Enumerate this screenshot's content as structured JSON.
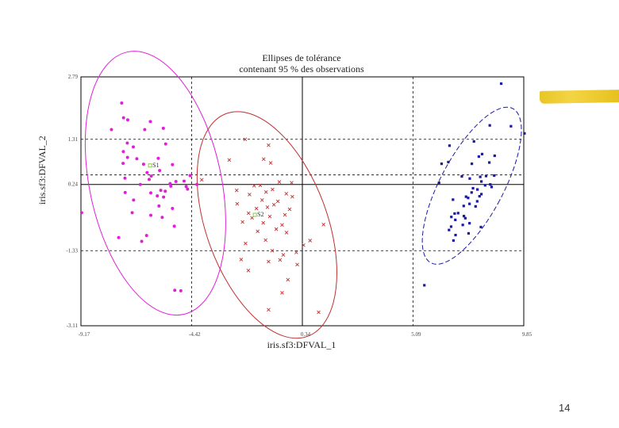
{
  "page": {
    "number": "14"
  },
  "chart_data": {
    "type": "scatter",
    "title": [
      "Ellipses de tolérance",
      "contenant 95 % des observations"
    ],
    "xlabel": "iris.sf3:DFVAL_1",
    "ylabel": "iris.sf3:DFVAL_2",
    "xlim": [
      -9.17,
      9.85
    ],
    "ylim": [
      -3.11,
      2.79
    ],
    "x_ticks": [
      "-9.17",
      "-4.42",
      "0.34",
      "5.09",
      "9.85"
    ],
    "y_ticks": [
      "2.79",
      "1.31",
      "0.24",
      "-1.33",
      "-3.11"
    ],
    "x_tick_values": [
      -9.17,
      -4.42,
      0.34,
      5.09,
      9.85
    ],
    "y_tick_values": [
      2.79,
      1.31,
      0.24,
      -1.33,
      -3.11
    ],
    "colors": {
      "s1": "#e020d8",
      "s2": "#c03030",
      "s3": "#1a1aa0",
      "centroid": "#88cc44",
      "grid": "#000000"
    },
    "centroid_labels": [
      "S1",
      "S2"
    ],
    "series": [
      {
        "id": "s1",
        "marker": "dot",
        "points": [
          [
            -7.42,
            2.17
          ],
          [
            -7.34,
            1.82
          ],
          [
            -7.16,
            1.77
          ],
          [
            -6.19,
            1.73
          ],
          [
            -7.86,
            1.54
          ],
          [
            -5.63,
            1.57
          ],
          [
            -6.43,
            1.54
          ],
          [
            -7.18,
            1.22
          ],
          [
            -5.53,
            1.2
          ],
          [
            -6.92,
            1.13
          ],
          [
            -7.35,
            1.02
          ],
          [
            -7.17,
            0.88
          ],
          [
            -5.85,
            0.86
          ],
          [
            -6.77,
            0.85
          ],
          [
            -7.36,
            0.74
          ],
          [
            -6.48,
            0.72
          ],
          [
            -5.24,
            0.71
          ],
          [
            -6.33,
            0.52
          ],
          [
            -6.15,
            0.44
          ],
          [
            -5.79,
            0.57
          ],
          [
            -7.28,
            0.39
          ],
          [
            -4.48,
            0.45
          ],
          [
            -4.74,
            0.32
          ],
          [
            -6.24,
            0.36
          ],
          [
            -5.09,
            0.31
          ],
          [
            -5.34,
            0.26
          ],
          [
            -6.62,
            0.24
          ],
          [
            -5.31,
            0.2
          ],
          [
            -4.65,
            0.19
          ],
          [
            -4.19,
            0.24
          ],
          [
            -4.59,
            0.13
          ],
          [
            -5.74,
            0.1
          ],
          [
            -7.27,
            0.05
          ],
          [
            -5.55,
            0.08
          ],
          [
            -6.17,
            0.04
          ],
          [
            -5.89,
            -0.03
          ],
          [
            -5.62,
            -0.06
          ],
          [
            -6.91,
            -0.13
          ],
          [
            -5.82,
            -0.27
          ],
          [
            -5.24,
            -0.33
          ],
          [
            -6.97,
            -0.43
          ],
          [
            -9.14,
            -0.43
          ],
          [
            -6.17,
            -0.49
          ],
          [
            -5.68,
            -0.54
          ],
          [
            -5.16,
            -0.75
          ],
          [
            -6.35,
            -0.97
          ],
          [
            -7.55,
            -1.02
          ],
          [
            -6.56,
            -1.11
          ],
          [
            -5.14,
            -2.27
          ],
          [
            -4.88,
            -2.28
          ]
        ]
      },
      {
        "id": "s2",
        "marker": "x",
        "points": [
          [
            -2.12,
            1.31
          ],
          [
            -1.11,
            1.17
          ],
          [
            -2.8,
            0.82
          ],
          [
            -1.32,
            0.84
          ],
          [
            -1.02,
            0.75
          ],
          [
            -3.98,
            0.35
          ],
          [
            -0.65,
            0.3
          ],
          [
            -0.12,
            0.28
          ],
          [
            -1.47,
            0.22
          ],
          [
            -1.73,
            0.21
          ],
          [
            -0.94,
            0.12
          ],
          [
            -2.48,
            0.1
          ],
          [
            -1.22,
            0.06
          ],
          [
            -0.35,
            0.02
          ],
          [
            -1.93,
            0.0
          ],
          [
            -0.09,
            -0.05
          ],
          [
            -1.39,
            -0.13
          ],
          [
            -0.71,
            -0.16
          ],
          [
            -2.46,
            -0.22
          ],
          [
            -0.88,
            -0.24
          ],
          [
            -1.16,
            -0.3
          ],
          [
            -1.63,
            -0.33
          ],
          [
            -0.21,
            -0.35
          ],
          [
            -1.97,
            -0.44
          ],
          [
            -0.41,
            -0.48
          ],
          [
            -1.06,
            -0.52
          ],
          [
            -1.82,
            -0.55
          ],
          [
            -2.23,
            -0.65
          ],
          [
            -1.34,
            -0.67
          ],
          [
            -0.53,
            -0.72
          ],
          [
            1.25,
            -0.71
          ],
          [
            -0.78,
            -0.82
          ],
          [
            -1.58,
            -0.87
          ],
          [
            -0.34,
            -0.9
          ],
          [
            -1.24,
            -1.08
          ],
          [
            0.67,
            -1.09
          ],
          [
            -2.1,
            -1.16
          ],
          [
            0.39,
            -1.2
          ],
          [
            -0.96,
            -1.33
          ],
          [
            0.08,
            -1.37
          ],
          [
            -0.48,
            -1.43
          ],
          [
            -2.29,
            -1.54
          ],
          [
            -0.62,
            -1.55
          ],
          [
            -1.11,
            -1.59
          ],
          [
            0.12,
            -1.66
          ],
          [
            -1.98,
            -1.8
          ],
          [
            -0.28,
            -2.02
          ],
          [
            -0.53,
            -2.33
          ],
          [
            -1.11,
            -2.73
          ],
          [
            1.04,
            -2.79
          ]
        ]
      },
      {
        "id": "s3",
        "marker": "square",
        "points": [
          [
            8.88,
            2.63
          ],
          [
            8.39,
            1.64
          ],
          [
            9.3,
            1.62
          ],
          [
            9.88,
            1.45
          ],
          [
            6.66,
            1.16
          ],
          [
            7.71,
            1.26
          ],
          [
            8.06,
            0.96
          ],
          [
            8.6,
            0.92
          ],
          [
            7.92,
            0.9
          ],
          [
            6.32,
            0.73
          ],
          [
            8.37,
            0.76
          ],
          [
            7.62,
            0.73
          ],
          [
            6.61,
            0.77
          ],
          [
            8.58,
            0.45
          ],
          [
            8.23,
            0.44
          ],
          [
            7.98,
            0.42
          ],
          [
            7.19,
            0.43
          ],
          [
            7.53,
            0.38
          ],
          [
            8.03,
            0.31
          ],
          [
            6.21,
            0.28
          ],
          [
            8.41,
            0.24
          ],
          [
            8.19,
            0.22
          ],
          [
            8.47,
            0.18
          ],
          [
            7.67,
            0.15
          ],
          [
            7.86,
            0.12
          ],
          [
            7.61,
            0.05
          ],
          [
            8.03,
            0.01
          ],
          [
            7.95,
            -0.04
          ],
          [
            7.37,
            -0.05
          ],
          [
            7.46,
            -0.08
          ],
          [
            6.81,
            -0.12
          ],
          [
            7.85,
            -0.16
          ],
          [
            7.52,
            -0.22
          ],
          [
            7.27,
            -0.27
          ],
          [
            7.78,
            -0.28
          ],
          [
            7.03,
            -0.44
          ],
          [
            6.88,
            -0.45
          ],
          [
            7.28,
            -0.51
          ],
          [
            6.74,
            -0.53
          ],
          [
            7.34,
            -0.56
          ],
          [
            6.91,
            -0.6
          ],
          [
            7.52,
            -0.68
          ],
          [
            7.23,
            -0.72
          ],
          [
            6.73,
            -0.76
          ],
          [
            8.01,
            -0.77
          ],
          [
            6.64,
            -0.84
          ],
          [
            7.48,
            -0.92
          ],
          [
            6.92,
            -0.96
          ],
          [
            6.83,
            -1.09
          ],
          [
            5.58,
            -2.15
          ]
        ]
      }
    ],
    "centroids": [
      {
        "label": "S1",
        "x": -6.2,
        "y": 0.69
      },
      {
        "label": "S2",
        "x": -1.7,
        "y": -0.48
      }
    ],
    "ellipses": [
      {
        "id": "s1",
        "cx": -5.97,
        "cy": 0.27,
        "rx": 2.83,
        "ry": 3.18,
        "rotation": -12
      },
      {
        "id": "s2",
        "cx": -1.18,
        "cy": -0.72,
        "rx": 2.6,
        "ry": 2.81,
        "rotation": -20
      },
      {
        "id": "s3",
        "cx": 7.62,
        "cy": 0.21,
        "rx": 1.35,
        "ry": 2.07,
        "rotation": 28
      }
    ]
  }
}
